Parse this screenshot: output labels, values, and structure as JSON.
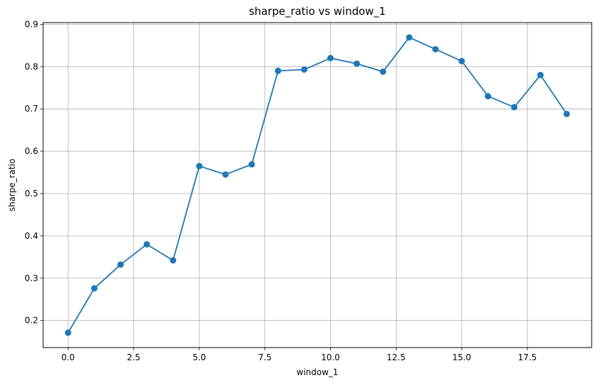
{
  "chart_data": {
    "type": "line",
    "title": "sharpe_ratio vs window_1",
    "xlabel": "window_1",
    "ylabel": "sharpe_ratio",
    "x": [
      0,
      1,
      2,
      3,
      4,
      5,
      6,
      7,
      8,
      9,
      10,
      11,
      12,
      13,
      14,
      15,
      16,
      17,
      18,
      19
    ],
    "series": [
      {
        "values": [
          0.171,
          0.276,
          0.332,
          0.38,
          0.342,
          0.565,
          0.545,
          0.569,
          0.79,
          0.793,
          0.82,
          0.807,
          0.788,
          0.869,
          0.841,
          0.813,
          0.73,
          0.704,
          0.78,
          0.688
        ]
      }
    ],
    "xlim": [
      -0.95,
      19.95
    ],
    "ylim": [
      0.136,
      0.904
    ],
    "xticks": [
      0.0,
      2.5,
      5.0,
      7.5,
      10.0,
      12.5,
      15.0,
      17.5
    ],
    "xtick_labels": [
      "0.0",
      "2.5",
      "5.0",
      "7.5",
      "10.0",
      "12.5",
      "15.0",
      "17.5"
    ],
    "yticks": [
      0.2,
      0.3,
      0.4,
      0.5,
      0.6,
      0.7,
      0.8,
      0.9
    ],
    "ytick_labels": [
      "0.2",
      "0.3",
      "0.4",
      "0.5",
      "0.6",
      "0.7",
      "0.8",
      "0.9"
    ],
    "grid": true,
    "line_color": "#1f77b4",
    "grid_color": "#b0b0b0"
  }
}
